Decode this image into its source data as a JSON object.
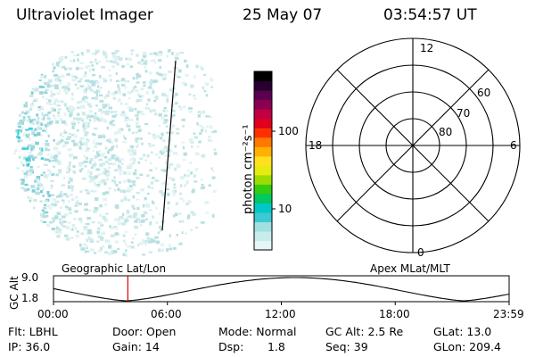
{
  "header": {
    "instrument": "Ultraviolet Imager",
    "date": "25 May 07",
    "time": "03:54:57 UT"
  },
  "colorbar": {
    "label": "photon cm⁻²s⁻¹",
    "ticks": [
      "100",
      "10"
    ],
    "colors": [
      "#e6f6f6",
      "#c8ecec",
      "#a0e0e0",
      "#3ec8d2",
      "#00c8c8",
      "#00c864",
      "#34cc10",
      "#9cdc00",
      "#e6ec10",
      "#ffe020",
      "#ffb000",
      "#ff7800",
      "#ff3000",
      "#e0001e",
      "#c00040",
      "#8c0050",
      "#5a0050",
      "#280030",
      "#000000"
    ]
  },
  "polar_plot": {
    "mlt_labels": {
      "top": "12",
      "left": "18",
      "right": "6",
      "bottom": "0"
    },
    "lat_labels": [
      "60",
      "70",
      "80"
    ]
  },
  "timeline": {
    "ylabel": "GC Alt",
    "ytick_top": "9.0",
    "ytick_bottom": "1.8",
    "left_title": "Geographic Lat/Lon",
    "right_title": "Apex MLat/MLT",
    "xticks": [
      "00:00",
      "06:00",
      "12:00",
      "18:00",
      "23:59"
    ],
    "current_time_fraction": 0.1632,
    "marker_color": "#e00000"
  },
  "status": {
    "flt": "Flt: LBHL",
    "ip": "IP: 36.0",
    "door": "Door: Open",
    "gain": "Gain: 14",
    "mode": "Mode: Normal",
    "dsp_label": "Dsp:",
    "dsp_value": "1.8",
    "gc_alt": "GC Alt: 2.5 Re",
    "seq": "Seq: 39",
    "glat": "GLat: 13.0",
    "glon": "GLon: 209.4"
  }
}
